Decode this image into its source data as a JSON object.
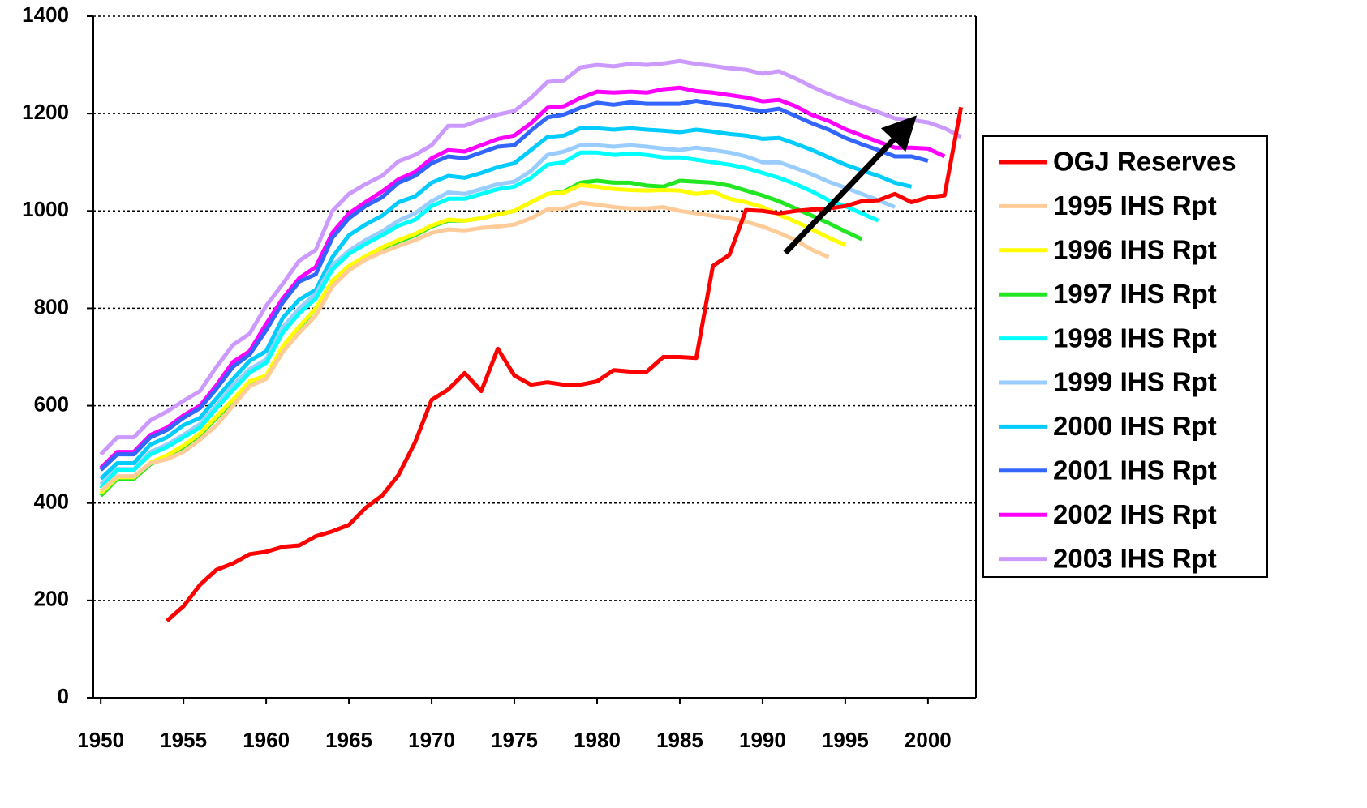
{
  "chart_data": {
    "type": "line",
    "x": [
      1950,
      1951,
      1952,
      1953,
      1954,
      1955,
      1956,
      1957,
      1958,
      1959,
      1960,
      1961,
      1962,
      1963,
      1964,
      1965,
      1966,
      1967,
      1968,
      1969,
      1970,
      1971,
      1972,
      1973,
      1974,
      1975,
      1976,
      1977,
      1978,
      1979,
      1980,
      1981,
      1982,
      1983,
      1984,
      1985,
      1986,
      1987,
      1988,
      1989,
      1990,
      1991,
      1992,
      1993,
      1994,
      1995,
      1996,
      1997,
      1998,
      1999,
      2000,
      2001,
      2002
    ],
    "xlim": [
      1949.55,
      2002.9
    ],
    "xticks": [
      1950,
      1955,
      1960,
      1965,
      1970,
      1975,
      1980,
      1985,
      1990,
      1995,
      2000
    ],
    "ylim": [
      0,
      1400
    ],
    "yticks": [
      0,
      200,
      400,
      600,
      800,
      1000,
      1200,
      1400
    ],
    "grid": true,
    "legend": "right",
    "series": [
      {
        "name": "OGJ Reserves",
        "color": "#ff0000",
        "values": [
          null,
          null,
          null,
          null,
          158,
          188,
          232,
          263,
          276,
          295,
          300,
          310,
          313,
          332,
          342,
          355,
          390,
          415,
          458,
          525,
          612,
          633,
          667,
          630,
          717,
          662,
          643,
          648,
          643,
          643,
          650,
          673,
          670,
          670,
          700,
          700,
          698,
          887,
          910,
          1002,
          1000,
          995,
          1000,
          1003,
          1005,
          1010,
          1020,
          1022,
          1035,
          1018,
          1028,
          1032,
          1213
        ]
      },
      {
        "name": "1995 IHS Rpt",
        "color": "#ffcc99",
        "values": [
          425,
          455,
          455,
          482,
          490,
          505,
          530,
          560,
          600,
          640,
          655,
          710,
          750,
          785,
          845,
          878,
          900,
          915,
          928,
          940,
          955,
          962,
          960,
          965,
          968,
          972,
          985,
          1003,
          1005,
          1017,
          1013,
          1008,
          1005,
          1005,
          1008,
          1000,
          995,
          990,
          985,
          978,
          968,
          955,
          940,
          920,
          905,
          null,
          null,
          null,
          null,
          null,
          null,
          null,
          null
        ]
      },
      {
        "name": "1996 IHS Rpt",
        "color": "#ffff00",
        "values": [
          420,
          453,
          453,
          483,
          498,
          518,
          543,
          578,
          613,
          650,
          662,
          722,
          763,
          800,
          857,
          887,
          907,
          925,
          940,
          953,
          970,
          982,
          980,
          985,
          993,
          1000,
          1018,
          1035,
          1038,
          1053,
          1050,
          1045,
          1043,
          1042,
          1043,
          1042,
          1035,
          1040,
          1025,
          1018,
          1008,
          992,
          978,
          962,
          945,
          930,
          null,
          null,
          null,
          null,
          null,
          null,
          null
        ]
      },
      {
        "name": "1997 IHS Rpt",
        "color": "#22e622",
        "values": [
          415,
          450,
          450,
          480,
          495,
          515,
          540,
          575,
          610,
          648,
          658,
          720,
          760,
          800,
          855,
          885,
          905,
          922,
          937,
          950,
          968,
          980,
          980,
          985,
          993,
          1000,
          1018,
          1035,
          1040,
          1058,
          1062,
          1058,
          1058,
          1052,
          1050,
          1062,
          1060,
          1058,
          1052,
          1042,
          1032,
          1020,
          1005,
          990,
          975,
          958,
          942,
          null,
          null,
          null,
          null,
          null,
          null
        ]
      },
      {
        "name": "1998 IHS Rpt",
        "color": "#00ffff",
        "values": [
          430,
          468,
          468,
          500,
          515,
          535,
          555,
          595,
          632,
          668,
          688,
          750,
          790,
          820,
          880,
          912,
          932,
          950,
          970,
          982,
          1010,
          1025,
          1025,
          1035,
          1045,
          1050,
          1068,
          1095,
          1100,
          1120,
          1120,
          1115,
          1118,
          1115,
          1110,
          1110,
          1105,
          1100,
          1095,
          1088,
          1078,
          1068,
          1055,
          1040,
          1022,
          1010,
          995,
          980,
          null,
          null,
          null,
          null,
          null
        ]
      },
      {
        "name": "1999 IHS Rpt",
        "color": "#99ccff",
        "values": [
          438,
          470,
          470,
          505,
          520,
          540,
          562,
          600,
          642,
          675,
          695,
          760,
          800,
          830,
          888,
          918,
          940,
          958,
          980,
          995,
          1020,
          1038,
          1035,
          1045,
          1055,
          1060,
          1082,
          1115,
          1122,
          1135,
          1135,
          1132,
          1135,
          1132,
          1128,
          1125,
          1130,
          1125,
          1120,
          1112,
          1100,
          1100,
          1088,
          1075,
          1060,
          1048,
          1035,
          1022,
          1008,
          null,
          null,
          null,
          null
        ]
      },
      {
        "name": "2000 IHS Rpt",
        "color": "#00ccff",
        "values": [
          450,
          482,
          482,
          520,
          535,
          560,
          575,
          615,
          655,
          692,
          712,
          780,
          818,
          838,
          905,
          950,
          972,
          990,
          1018,
          1030,
          1058,
          1072,
          1068,
          1078,
          1090,
          1098,
          1125,
          1152,
          1155,
          1170,
          1170,
          1167,
          1170,
          1167,
          1165,
          1162,
          1167,
          1163,
          1158,
          1155,
          1148,
          1150,
          1138,
          1125,
          1110,
          1095,
          1083,
          1072,
          1058,
          1050,
          null,
          null,
          null
        ]
      },
      {
        "name": "2001 IHS Rpt",
        "color": "#3366ff",
        "values": [
          468,
          500,
          500,
          535,
          550,
          575,
          595,
          635,
          680,
          705,
          755,
          812,
          855,
          870,
          945,
          985,
          1010,
          1028,
          1058,
          1072,
          1098,
          1112,
          1108,
          1120,
          1132,
          1135,
          1165,
          1192,
          1198,
          1212,
          1222,
          1218,
          1223,
          1220,
          1220,
          1220,
          1226,
          1220,
          1217,
          1210,
          1205,
          1210,
          1195,
          1180,
          1167,
          1150,
          1137,
          1125,
          1112,
          1112,
          1103,
          null,
          null
        ]
      },
      {
        "name": "2002 IHS Rpt",
        "color": "#ff00ff",
        "values": [
          472,
          505,
          505,
          540,
          555,
          580,
          600,
          642,
          690,
          712,
          768,
          820,
          862,
          885,
          955,
          995,
          1018,
          1040,
          1065,
          1080,
          1108,
          1125,
          1122,
          1135,
          1148,
          1155,
          1180,
          1212,
          1215,
          1232,
          1245,
          1243,
          1245,
          1243,
          1250,
          1253,
          1246,
          1243,
          1238,
          1233,
          1225,
          1228,
          1215,
          1197,
          1185,
          1168,
          1155,
          1142,
          1130,
          1130,
          1128,
          1112,
          null
        ]
      },
      {
        "name": "2003 IHS Rpt",
        "color": "#cc99ff",
        "values": [
          500,
          535,
          535,
          570,
          588,
          610,
          630,
          680,
          725,
          748,
          805,
          850,
          898,
          920,
          1000,
          1035,
          1055,
          1072,
          1102,
          1115,
          1135,
          1175,
          1175,
          1188,
          1198,
          1205,
          1232,
          1265,
          1268,
          1295,
          1300,
          1297,
          1302,
          1300,
          1303,
          1308,
          1302,
          1298,
          1293,
          1290,
          1282,
          1287,
          1272,
          1255,
          1240,
          1227,
          1215,
          1203,
          1190,
          1187,
          1182,
          1170,
          1152
        ]
      }
    ]
  }
}
